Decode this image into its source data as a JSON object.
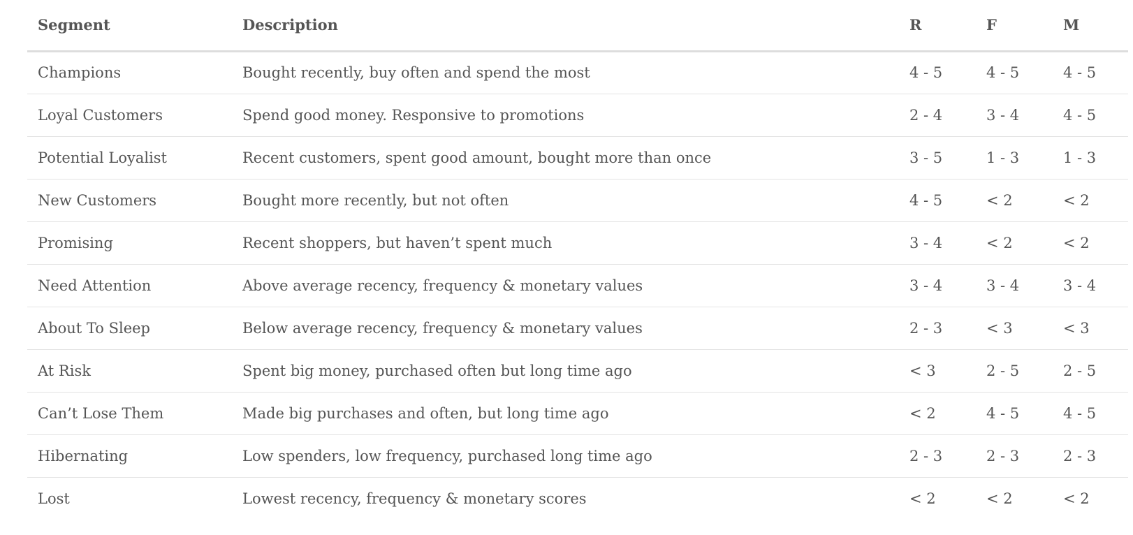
{
  "table": {
    "headers": {
      "segment": "Segment",
      "description": "Description",
      "r": "R",
      "f": "F",
      "m": "M"
    },
    "rows": [
      {
        "segment": "Champions",
        "description": "Bought recently, buy often and spend the most",
        "r": "4 - 5",
        "f": "4 - 5",
        "m": "4 - 5"
      },
      {
        "segment": "Loyal Customers",
        "description": "Spend good money. Responsive to promotions",
        "r": "2 - 4",
        "f": "3 - 4",
        "m": "4 - 5"
      },
      {
        "segment": "Potential Loyalist",
        "description": "Recent customers, spent good amount, bought more than once",
        "r": "3 - 5",
        "f": "1 - 3",
        "m": "1 - 3"
      },
      {
        "segment": "New Customers",
        "description": "Bought more recently, but not often",
        "r": "4 - 5",
        "f": "< 2",
        "m": "< 2"
      },
      {
        "segment": "Promising",
        "description": "Recent shoppers, but haven’t spent much",
        "r": "3 - 4",
        "f": "< 2",
        "m": "< 2"
      },
      {
        "segment": "Need Attention",
        "description": "Above average recency, frequency & monetary values",
        "r": "3 - 4",
        "f": "3 - 4",
        "m": "3 - 4"
      },
      {
        "segment": "About To Sleep",
        "description": "Below average recency, frequency & monetary values",
        "r": "2 - 3",
        "f": "< 3",
        "m": "< 3"
      },
      {
        "segment": "At Risk",
        "description": "Spent big money, purchased often but long time ago",
        "r": "< 3",
        "f": "2 - 5",
        "m": "2 - 5"
      },
      {
        "segment": "Can’t Lose Them",
        "description": "Made big purchases and often, but long time ago",
        "r": "< 2",
        "f": "4 - 5",
        "m": "4 - 5"
      },
      {
        "segment": "Hibernating",
        "description": "Low spenders, low frequency, purchased long time ago",
        "r": "2 - 3",
        "f": "2 - 3",
        "m": "2 - 3"
      },
      {
        "segment": "Lost",
        "description": "Lowest recency, frequency & monetary scores",
        "r": "< 2",
        "f": "< 2",
        "m": "< 2"
      }
    ]
  }
}
